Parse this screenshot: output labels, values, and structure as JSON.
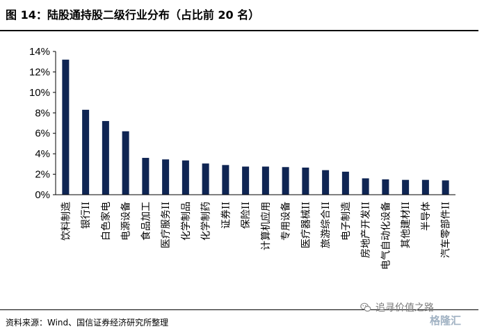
{
  "header": {
    "title": "图 14：陆股通持股二级行业分布（占比前 20 名）"
  },
  "source": "资料来源：Wind、国信证券经济研究所整理",
  "watermark": {
    "text": "追寻价值之路",
    "logo": "格隆汇",
    "icon": "wechat-icon"
  },
  "colors": {
    "bar": "#0f2553",
    "rule": "#000000"
  },
  "chart_data": {
    "type": "bar",
    "title": "",
    "xlabel": "",
    "ylabel": "",
    "ylim": [
      0,
      14
    ],
    "yticks": [
      "0%",
      "2%",
      "4%",
      "6%",
      "8%",
      "10%",
      "12%",
      "14%"
    ],
    "grid": false,
    "categories": [
      "饮料制造",
      "银行II",
      "白色家电",
      "电源设备",
      "食品加工",
      "医疗服务II",
      "化学制品",
      "化学制药",
      "证券II",
      "保险II",
      "计算机应用",
      "专用设备",
      "医疗器械II",
      "旅游综合II",
      "电子制造",
      "房地产开发II",
      "电气自动化设备",
      "其他建材II",
      "半导体",
      "汽车零部件II"
    ],
    "values": [
      13.2,
      8.3,
      7.2,
      6.2,
      3.6,
      3.45,
      3.35,
      3.05,
      2.9,
      2.75,
      2.75,
      2.7,
      2.65,
      2.4,
      2.25,
      1.6,
      1.5,
      1.45,
      1.45,
      1.4
    ]
  }
}
